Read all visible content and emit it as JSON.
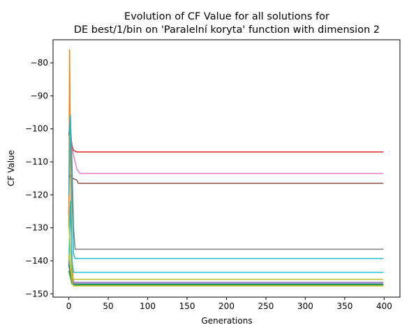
{
  "chart_data": {
    "type": "line",
    "title_line1": "Evolution of CF Value for all solutions for",
    "title_line2": "DE best/1/bin on 'Paralelní koryta' function with dimension 2",
    "xlabel": "Generations",
    "ylabel": "CF Value",
    "xlim": [
      -20,
      420
    ],
    "ylim": [
      -151,
      -73
    ],
    "xticks": [
      0,
      50,
      100,
      150,
      200,
      250,
      300,
      350,
      400
    ],
    "yticks": [
      -150,
      -140,
      -130,
      -120,
      -110,
      -100,
      -90,
      -80
    ],
    "x_end": 399,
    "grid": false,
    "series": [
      {
        "color": "#d62728",
        "points": [
          [
            0,
            -126
          ],
          [
            1,
            -98
          ],
          [
            2,
            -101
          ],
          [
            4,
            -105
          ],
          [
            6,
            -106.5
          ],
          [
            10,
            -107
          ],
          [
            399,
            -107
          ]
        ]
      },
      {
        "color": "#e377c2",
        "points": [
          [
            0,
            -104
          ],
          [
            3,
            -104.5
          ],
          [
            6,
            -108
          ],
          [
            10,
            -112
          ],
          [
            14,
            -113.5
          ],
          [
            399,
            -113.5
          ]
        ]
      },
      {
        "color": "#8c564b",
        "points": [
          [
            0,
            -115
          ],
          [
            2,
            -114
          ],
          [
            5,
            -115
          ],
          [
            10,
            -115.5
          ],
          [
            12,
            -116.5
          ],
          [
            399,
            -116.5
          ]
        ]
      },
      {
        "color": "#ff7f0e",
        "points": [
          [
            0,
            -130
          ],
          [
            1,
            -76
          ],
          [
            2,
            -110
          ],
          [
            4,
            -140
          ],
          [
            6,
            -147
          ],
          [
            399,
            -147
          ]
        ]
      },
      {
        "color": "#7f7f7f",
        "points": [
          [
            0,
            -102
          ],
          [
            2,
            -96
          ],
          [
            4,
            -110
          ],
          [
            6,
            -130
          ],
          [
            8,
            -136.5
          ],
          [
            399,
            -136.5
          ]
        ]
      },
      {
        "color": "#17becf",
        "points": [
          [
            0,
            -120
          ],
          [
            2,
            -96
          ],
          [
            4,
            -120
          ],
          [
            6,
            -138
          ],
          [
            8,
            -139.3
          ],
          [
            399,
            -139.3
          ]
        ]
      },
      {
        "color": "#17becf",
        "points": [
          [
            0,
            -142
          ],
          [
            2,
            -122
          ],
          [
            4,
            -140
          ],
          [
            6,
            -143.5
          ],
          [
            399,
            -143.5
          ]
        ]
      },
      {
        "color": "#bcbd22",
        "points": [
          [
            0,
            -128
          ],
          [
            2,
            -137
          ],
          [
            4,
            -144
          ],
          [
            6,
            -145.6
          ],
          [
            399,
            -145.6
          ]
        ]
      },
      {
        "color": "#9467bd",
        "points": [
          [
            0,
            -140
          ],
          [
            2,
            -143
          ],
          [
            4,
            -145.5
          ],
          [
            6,
            -146.5
          ],
          [
            399,
            -146.5
          ]
        ]
      },
      {
        "color": "#1f77b4",
        "points": [
          [
            0,
            -141
          ],
          [
            2,
            -144
          ],
          [
            4,
            -146.5
          ],
          [
            6,
            -147
          ],
          [
            399,
            -147
          ]
        ]
      },
      {
        "color": "#2ca02c",
        "points": [
          [
            0,
            -143
          ],
          [
            2,
            -145
          ],
          [
            4,
            -147
          ],
          [
            6,
            -147.3
          ],
          [
            399,
            -147.3
          ]
        ]
      },
      {
        "color": "#bcbd22",
        "points": [
          [
            0,
            -138
          ],
          [
            2,
            -142
          ],
          [
            4,
            -146
          ],
          [
            6,
            -147.6
          ],
          [
            399,
            -147.6
          ]
        ]
      }
    ]
  }
}
